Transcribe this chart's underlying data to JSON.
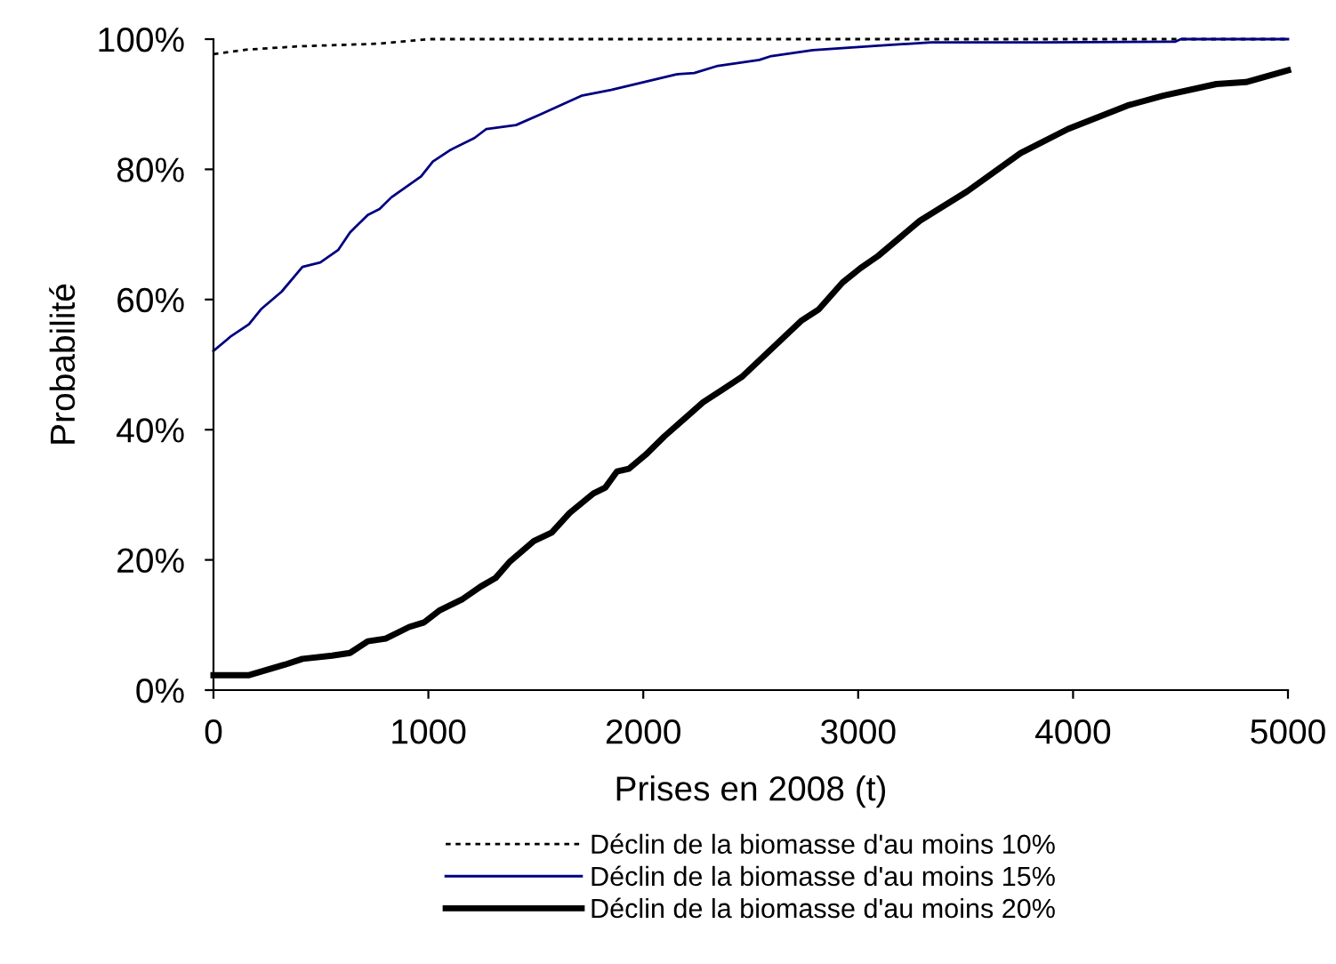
{
  "chart_data": {
    "type": "line",
    "xlabel": "Prises en 2008 (t)",
    "ylabel": "Probabilité",
    "xlim": [
      0,
      5000
    ],
    "xticks": [
      0,
      1000,
      2000,
      3000,
      4000,
      5000
    ],
    "ylim": [
      0,
      100
    ],
    "yticks": [
      {
        "value": 0,
        "label": "0%"
      },
      {
        "value": 20,
        "label": "20%"
      },
      {
        "value": 40,
        "label": "40%"
      },
      {
        "value": 60,
        "label": "60%"
      },
      {
        "value": 80,
        "label": "80%"
      },
      {
        "value": 100,
        "label": "100%"
      }
    ],
    "legend": "bottom",
    "grid": false,
    "marker": "none",
    "series": [
      {
        "name": "Déclin de la biomasse d'au moins 10%",
        "color": "#000000",
        "line_style": "dotted",
        "x": [
          0,
          160,
          400,
          770,
          1000,
          5000
        ],
        "values": [
          97.7,
          98.4,
          98.9,
          99.3,
          100,
          100
        ]
      },
      {
        "name": "Déclin de la biomasse d'au moins 15%",
        "color": "#000080",
        "line_style": "solid",
        "x": [
          0,
          83,
          165,
          221,
          317,
          414,
          497,
          580,
          635,
          718,
          773,
          828,
          966,
          1021,
          1104,
          1214,
          1270,
          1408,
          1518,
          1712,
          1850,
          2154,
          2237,
          2347,
          2540,
          2596,
          2789,
          3093,
          3341,
          3867,
          4474,
          4502,
          5000
        ],
        "values": [
          52.1,
          54.4,
          56.2,
          58.5,
          61.2,
          65.0,
          65.7,
          67.6,
          70.3,
          73.0,
          73.9,
          75.7,
          78.9,
          81.2,
          83.0,
          84.8,
          86.2,
          86.8,
          88.4,
          91.3,
          92.2,
          94.6,
          94.8,
          95.9,
          96.8,
          97.4,
          98.3,
          99.0,
          99.5,
          99.5,
          99.6,
          100,
          100
        ]
      },
      {
        "name": "Déclin de la biomasse d'au moins 20%",
        "color": "#000000",
        "line_style": "solid",
        "x": [
          0,
          166,
          331,
          414,
          552,
          635,
          718,
          801,
          911,
          980,
          1050,
          1160,
          1243,
          1312,
          1381,
          1491,
          1574,
          1657,
          1768,
          1823,
          1878,
          1933,
          2016,
          2099,
          2209,
          2278,
          2375,
          2458,
          2596,
          2734,
          2817,
          2927,
          3010,
          3093,
          3287,
          3507,
          3756,
          3977,
          4253,
          4419,
          4667,
          4805,
          5000
        ],
        "values": [
          2.3,
          2.3,
          3.9,
          4.8,
          5.3,
          5.7,
          7.5,
          7.9,
          9.7,
          10.4,
          12.2,
          14.0,
          15.9,
          17.2,
          19.8,
          22.9,
          24.2,
          27.2,
          30.2,
          31.1,
          33.6,
          34.0,
          36.3,
          39.0,
          42.2,
          44.2,
          46.3,
          48.1,
          52.4,
          56.7,
          58.5,
          62.6,
          64.8,
          66.7,
          72.1,
          76.6,
          82.5,
          86.2,
          89.8,
          91.3,
          93.1,
          93.4,
          95.2
        ]
      }
    ]
  }
}
